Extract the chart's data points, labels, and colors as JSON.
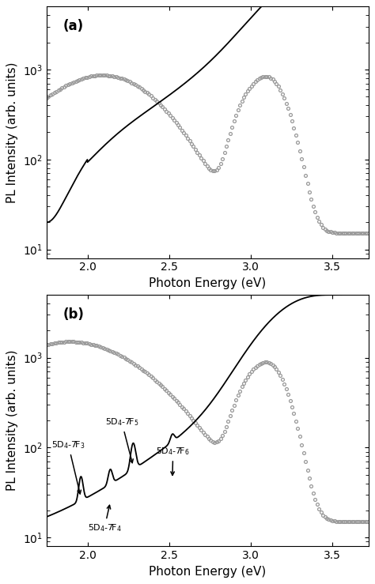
{
  "fig_width": 4.74,
  "fig_height": 7.39,
  "dpi": 100,
  "background_color": "#ffffff",
  "panel_a": {
    "label": "(a)",
    "xlim": [
      1.75,
      3.72
    ],
    "ylim_log": [
      8,
      5000
    ],
    "yticks": [
      10,
      100,
      1000
    ],
    "xticks": [
      2.0,
      2.5,
      3.0,
      3.5
    ],
    "xlabel": "Photon Energy (eV)",
    "ylabel": "PL Intensity (arb. units)"
  },
  "panel_b": {
    "label": "(b)",
    "xlim": [
      1.75,
      3.72
    ],
    "ylim_log": [
      8,
      5000
    ],
    "yticks": [
      10,
      100,
      1000
    ],
    "xticks": [
      2.0,
      2.5,
      3.0,
      3.5
    ],
    "xlabel": "Photon Energy (eV)",
    "ylabel": "PL Intensity (arb. units)"
  },
  "line_color_solid": "#000000",
  "line_color_circles": "#999999",
  "circle_size": 2.8,
  "line_width": 1.3
}
